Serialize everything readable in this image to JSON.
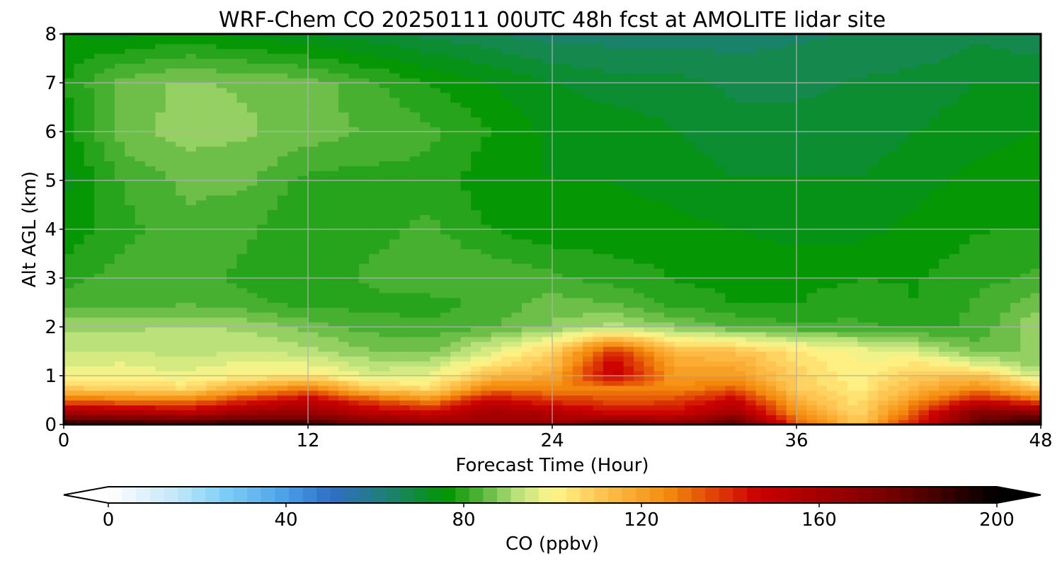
{
  "chart_data": {
    "type": "heatmap",
    "title": "WRF-Chem CO  20250111 00UTC 48h fcst at AMOLITE lidar site",
    "xlabel": "Forecast Time (Hour)",
    "ylabel": "Alt AGL (km)",
    "xlim": [
      0,
      48
    ],
    "ylim": [
      0,
      8
    ],
    "xticks": [
      "0",
      "12",
      "24",
      "36",
      "48"
    ],
    "yticks": [
      "0",
      "1",
      "2",
      "3",
      "4",
      "5",
      "6",
      "7",
      "8"
    ],
    "grid": true,
    "colorbar": {
      "label": "CO  (ppbv)",
      "min": 0,
      "max": 200,
      "ticks": [
        "0",
        "40",
        "80",
        "120",
        "160",
        "200"
      ],
      "extend": "both",
      "orientation": "horizontal",
      "stops": [
        {
          "value": 0,
          "color": "#ffffff"
        },
        {
          "value": 16,
          "color": "#bfe6f8"
        },
        {
          "value": 26,
          "color": "#7ecff7"
        },
        {
          "value": 40,
          "color": "#4aa0e8"
        },
        {
          "value": 50,
          "color": "#2f6fc8"
        },
        {
          "value": 62,
          "color": "#1f7f7a"
        },
        {
          "value": 76,
          "color": "#009600"
        },
        {
          "value": 84,
          "color": "#55b53a"
        },
        {
          "value": 92,
          "color": "#b8e07a"
        },
        {
          "value": 100,
          "color": "#fff78c"
        },
        {
          "value": 112,
          "color": "#ffc04a"
        },
        {
          "value": 126,
          "color": "#f48a0c"
        },
        {
          "value": 146,
          "color": "#cc0000"
        },
        {
          "value": 175,
          "color": "#7a0000"
        },
        {
          "value": 200,
          "color": "#000000"
        }
      ]
    },
    "x": [
      0,
      3,
      6,
      9,
      12,
      15,
      18,
      21,
      24,
      27,
      30,
      33,
      36,
      39,
      42,
      45,
      48
    ],
    "y": [
      0,
      0.25,
      0.5,
      0.75,
      1.0,
      1.25,
      1.5,
      2.0,
      2.5,
      3.0,
      4.0,
      5.0,
      6.0,
      7.0,
      8.0
    ],
    "z": [
      [
        195,
        192,
        190,
        193,
        190,
        178,
        170,
        165,
        165,
        180,
        170,
        185,
        135,
        110,
        145,
        185,
        195
      ],
      [
        160,
        158,
        152,
        162,
        165,
        152,
        146,
        160,
        155,
        145,
        145,
        160,
        125,
        106,
        135,
        172,
        168
      ],
      [
        132,
        128,
        126,
        140,
        150,
        135,
        125,
        148,
        138,
        135,
        136,
        148,
        116,
        104,
        125,
        145,
        130
      ],
      [
        110,
        108,
        106,
        118,
        128,
        110,
        105,
        128,
        126,
        128,
        125,
        132,
        110,
        102,
        115,
        125,
        110
      ],
      [
        99,
        99,
        98,
        102,
        104,
        96,
        97,
        114,
        118,
        150,
        122,
        122,
        108,
        101,
        110,
        112,
        94
      ],
      [
        96,
        97,
        95,
        98,
        97,
        92,
        92,
        104,
        112,
        148,
        118,
        117,
        106,
        100,
        104,
        96,
        88
      ],
      [
        94,
        94,
        92,
        94,
        92,
        88,
        87,
        96,
        108,
        140,
        114,
        112,
        104,
        99,
        95,
        86,
        88
      ],
      [
        90,
        90,
        91,
        90,
        86,
        83,
        82,
        84,
        88,
        92,
        88,
        84,
        82,
        82,
        80,
        82,
        91
      ],
      [
        83,
        82,
        84,
        82,
        80,
        80,
        80,
        82,
        86,
        84,
        80,
        78,
        78,
        80,
        78,
        82,
        86
      ],
      [
        80,
        83,
        84,
        80,
        79,
        82,
        84,
        84,
        82,
        80,
        78,
        77,
        77,
        78,
        78,
        80,
        82
      ],
      [
        76,
        80,
        84,
        82,
        78,
        80,
        82,
        78,
        76,
        76,
        76,
        75,
        74,
        74,
        76,
        78,
        78
      ],
      [
        74,
        82,
        85,
        85,
        80,
        80,
        80,
        76,
        75,
        75,
        74,
        72,
        72,
        72,
        74,
        76,
        77
      ],
      [
        76,
        86,
        89,
        88,
        86,
        84,
        82,
        78,
        74,
        74,
        72,
        70,
        70,
        70,
        72,
        74,
        75
      ],
      [
        78,
        86,
        88,
        87,
        86,
        82,
        78,
        75,
        72,
        70,
        70,
        68,
        68,
        69,
        70,
        72,
        72
      ],
      [
        75,
        74,
        76,
        74,
        72,
        70,
        68,
        66,
        64,
        64,
        64,
        64,
        65,
        66,
        66,
        68,
        66
      ]
    ]
  }
}
